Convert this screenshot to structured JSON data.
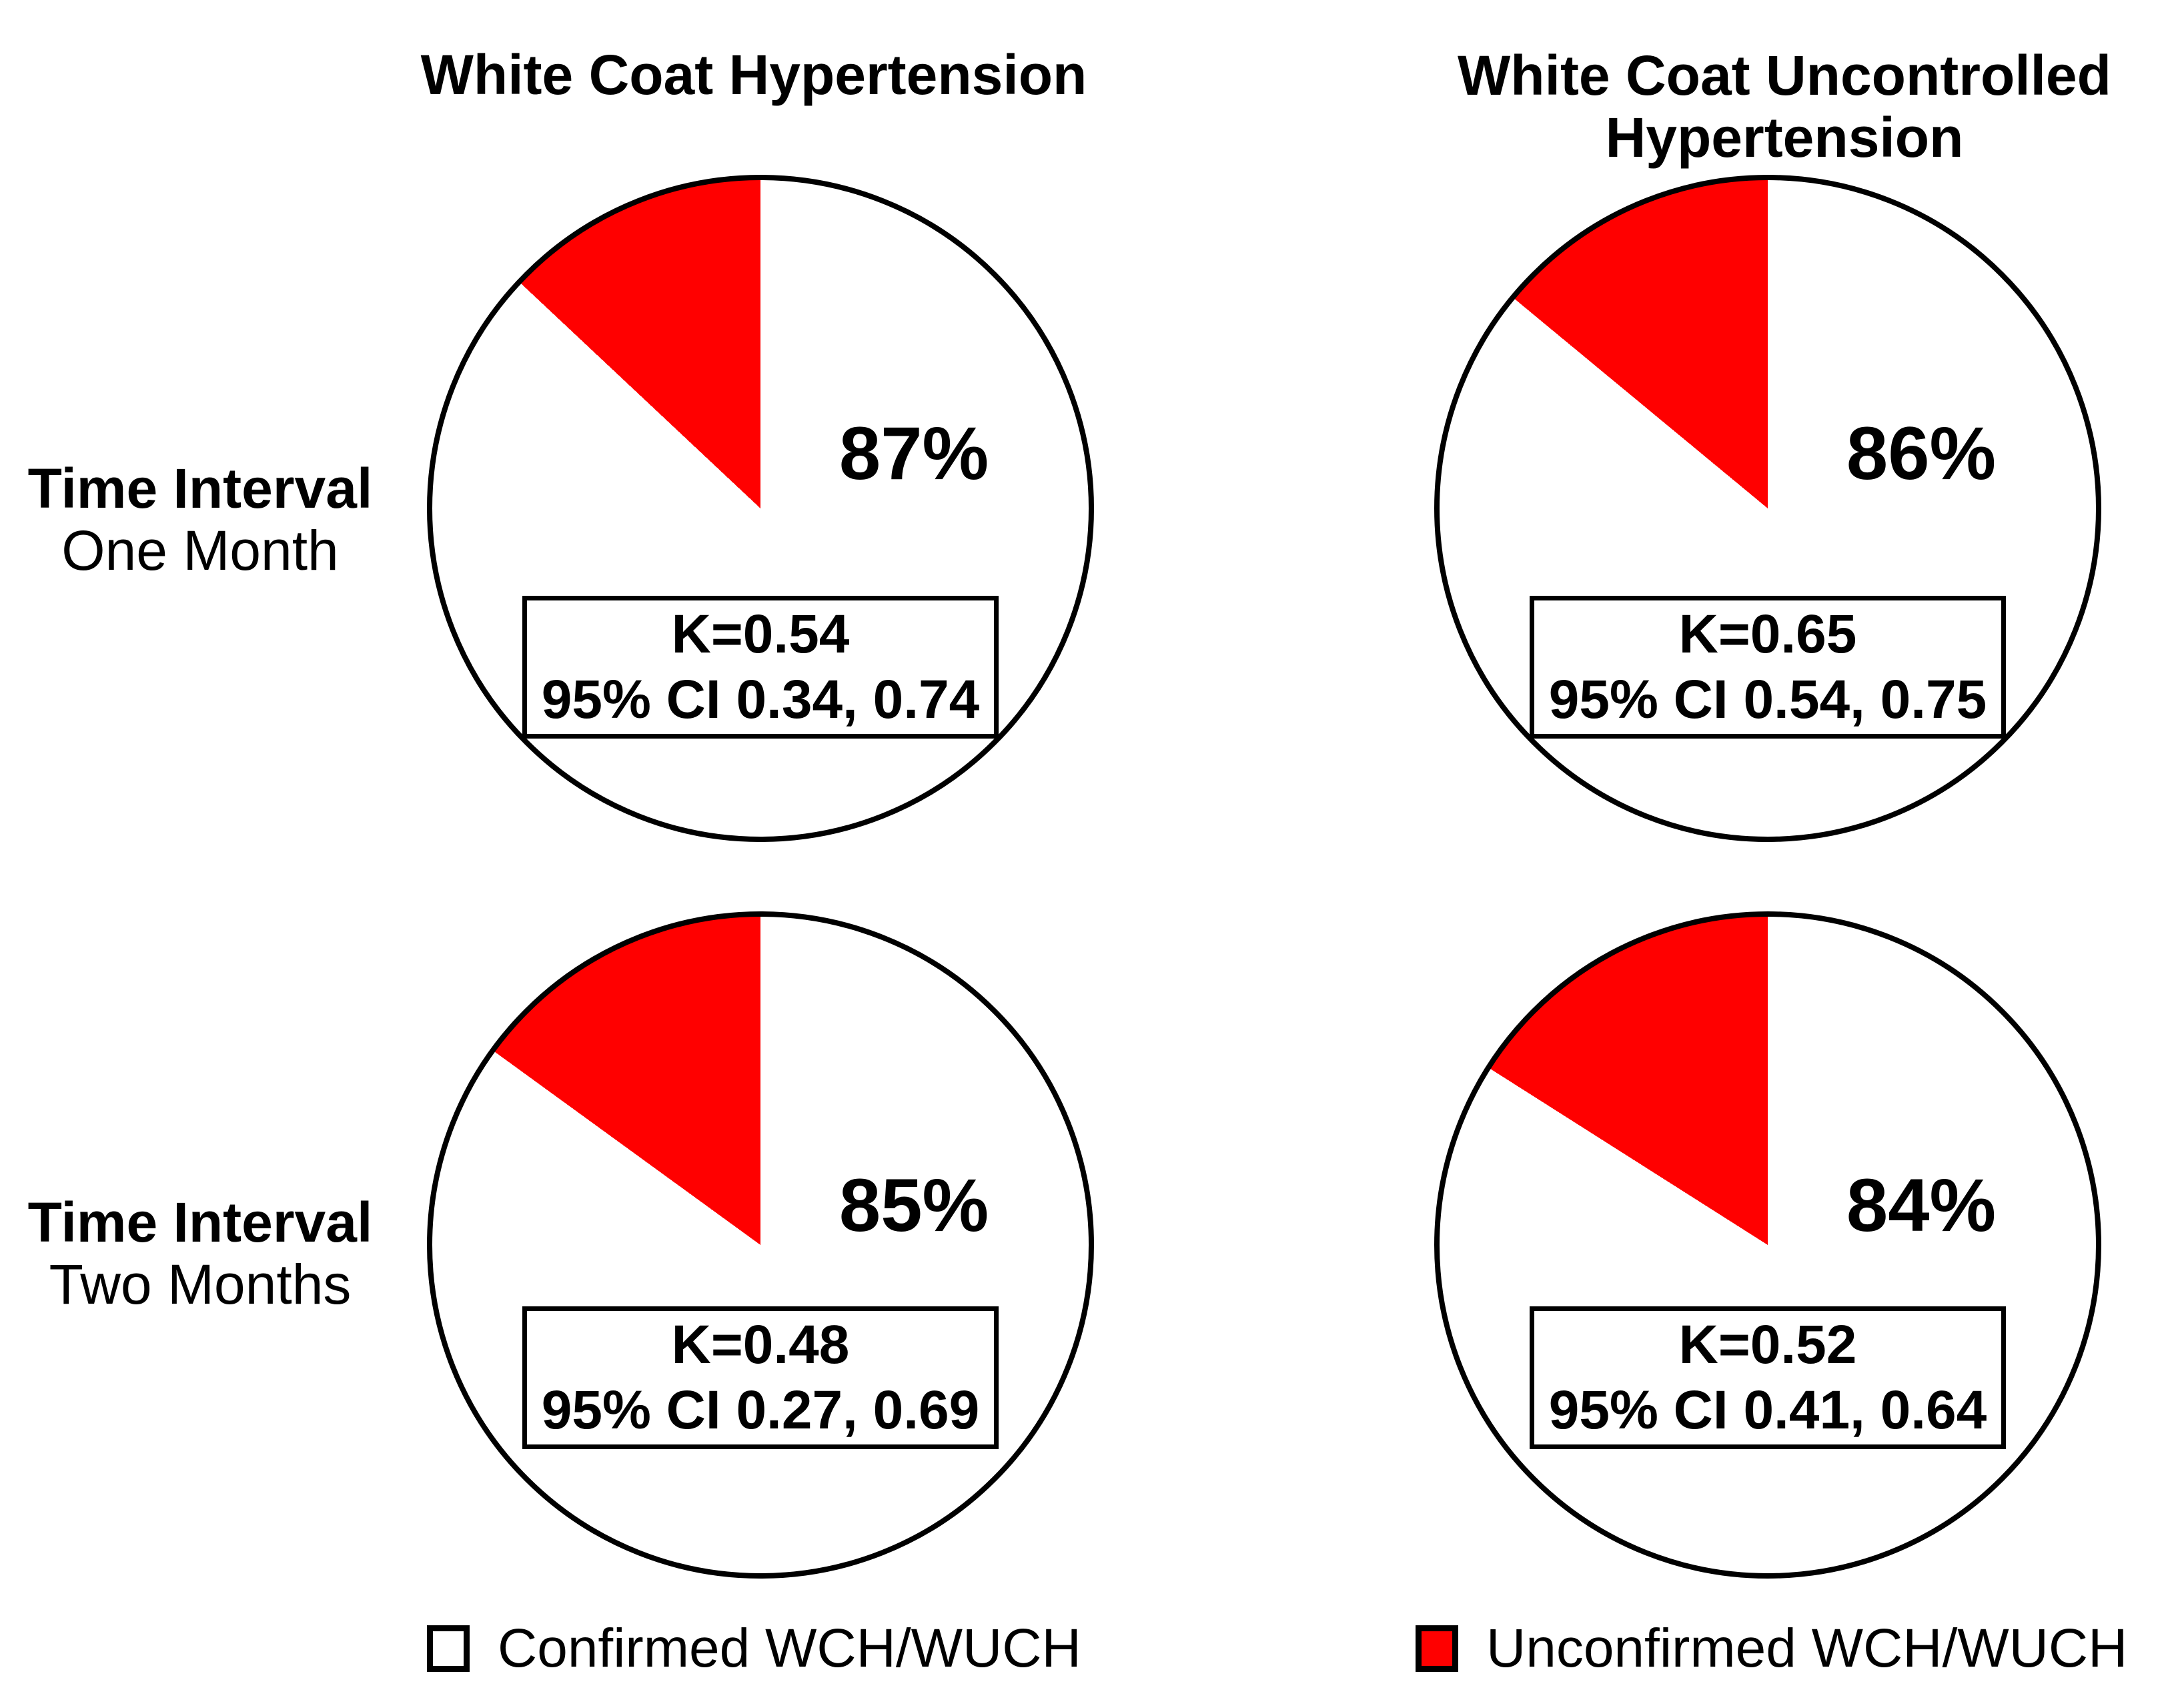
{
  "figure": {
    "background": "#FFFFFF",
    "outline_color": "#000000"
  },
  "columns": [
    {
      "title_lines": [
        "White Coat Hypertension",
        ""
      ]
    },
    {
      "title_lines": [
        "White Coat Uncontrolled",
        "Hypertension"
      ]
    }
  ],
  "rows": [
    {
      "label_line1": "Time Interval",
      "label_line2": "One Month"
    },
    {
      "label_line1": "Time Interval",
      "label_line2": "Two Months"
    }
  ],
  "legend": [
    {
      "label": "Confirmed WCH/WUCH",
      "color": "#FFFFFF"
    },
    {
      "label": "Unconfirmed WCH/WUCH",
      "color": "#FF0000"
    }
  ],
  "chart_data": [
    {
      "type": "pie",
      "column": "White Coat Hypertension",
      "time_interval": "One Month",
      "percent_label": "87%",
      "kappa_label": "K=0.54",
      "ci_label": "95% CI 0.34, 0.74",
      "slices": [
        {
          "label": "Confirmed WCH/WUCH",
          "value": 87,
          "color": "#FFFFFF"
        },
        {
          "label": "Unconfirmed WCH/WUCH",
          "value": 13,
          "color": "#FF0000"
        }
      ],
      "slice_start": "12 o'clock, unconfirmed wedge counterclockwise from top",
      "legend_position": "bottom"
    },
    {
      "type": "pie",
      "column": "White Coat Uncontrolled Hypertension",
      "time_interval": "One Month",
      "percent_label": "86%",
      "kappa_label": "K=0.65",
      "ci_label": "95% CI 0.54, 0.75",
      "slices": [
        {
          "label": "Confirmed WCH/WUCH",
          "value": 86,
          "color": "#FFFFFF"
        },
        {
          "label": "Unconfirmed WCH/WUCH",
          "value": 14,
          "color": "#FF0000"
        }
      ],
      "slice_start": "12 o'clock, unconfirmed wedge counterclockwise from top",
      "legend_position": "bottom"
    },
    {
      "type": "pie",
      "column": "White Coat Hypertension",
      "time_interval": "Two Months",
      "percent_label": "85%",
      "kappa_label": "K=0.48",
      "ci_label": "95% CI 0.27, 0.69",
      "slices": [
        {
          "label": "Confirmed WCH/WUCH",
          "value": 85,
          "color": "#FFFFFF"
        },
        {
          "label": "Unconfirmed WCH/WUCH",
          "value": 15,
          "color": "#FF0000"
        }
      ],
      "slice_start": "12 o'clock, unconfirmed wedge counterclockwise from top",
      "legend_position": "bottom"
    },
    {
      "type": "pie",
      "column": "White Coat Uncontrolled Hypertension",
      "time_interval": "Two Months",
      "percent_label": "84%",
      "kappa_label": "K=0.52",
      "ci_label": "95% CI 0.41, 0.64",
      "slices": [
        {
          "label": "Confirmed WCH/WUCH",
          "value": 84,
          "color": "#FFFFFF"
        },
        {
          "label": "Unconfirmed WCH/WUCH",
          "value": 16,
          "color": "#FF0000"
        }
      ],
      "slice_start": "12 o'clock, unconfirmed wedge counterclockwise from top",
      "legend_position": "bottom"
    }
  ]
}
